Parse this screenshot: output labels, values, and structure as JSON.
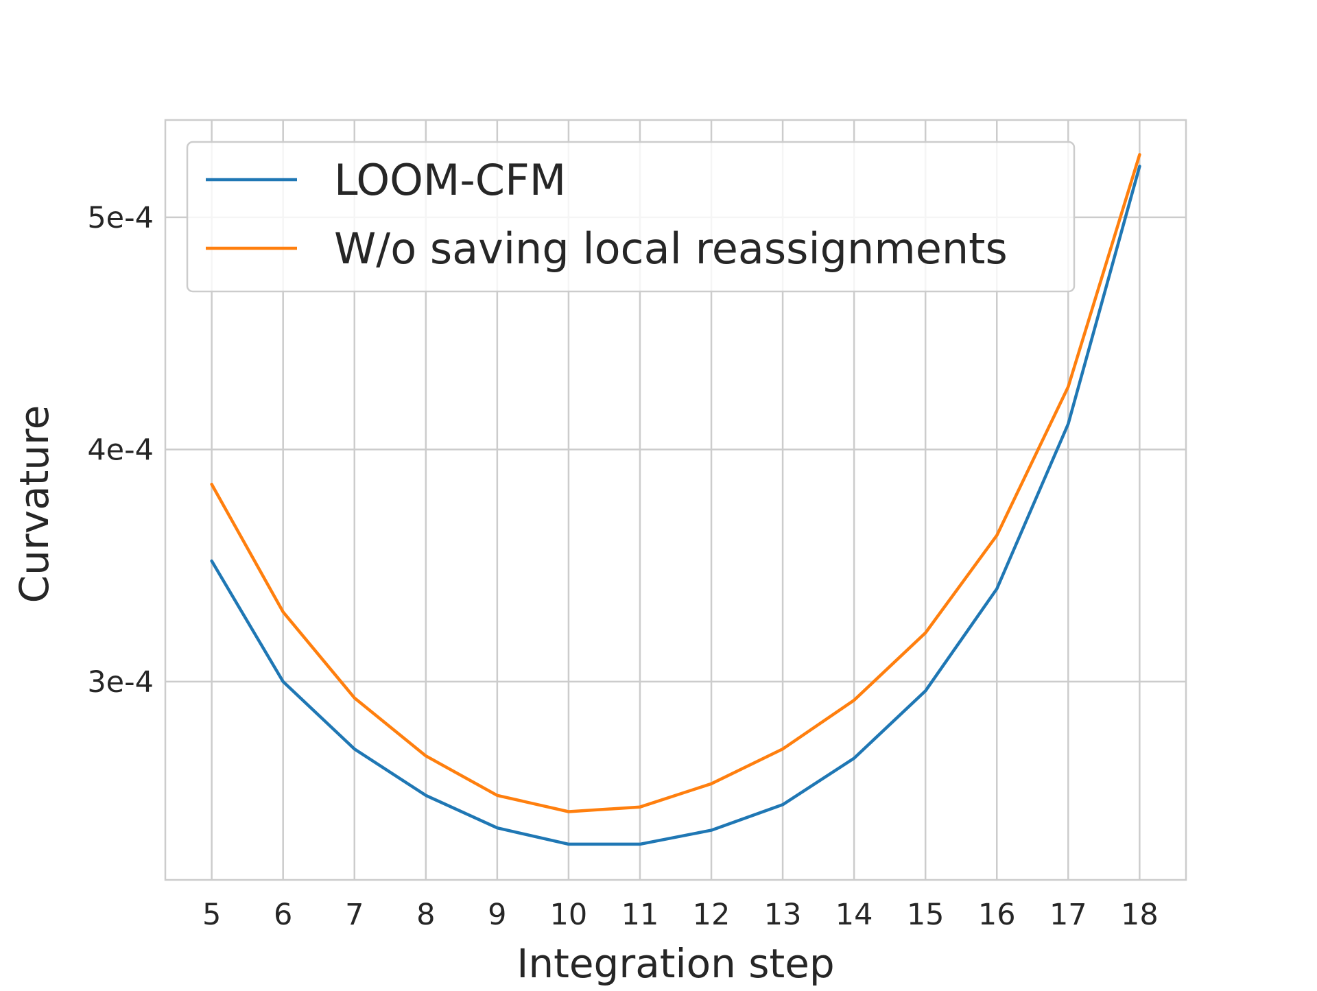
{
  "chart_data": {
    "type": "line",
    "title": "",
    "xlabel": "Integration step",
    "ylabel": "Curvature",
    "x": [
      5,
      6,
      7,
      8,
      9,
      10,
      11,
      12,
      13,
      14,
      15,
      16,
      17,
      18
    ],
    "x_ticks": [
      "5",
      "6",
      "7",
      "8",
      "9",
      "10",
      "11",
      "12",
      "13",
      "14",
      "15",
      "16",
      "17",
      "18"
    ],
    "y_ticks": [
      {
        "value": 0.0003,
        "label": "3e-4"
      },
      {
        "value": 0.0004,
        "label": "4e-4"
      },
      {
        "value": 0.0005,
        "label": "5e-4"
      }
    ],
    "xlim": [
      4.35,
      18.65
    ],
    "ylim": [
      0.0002146,
      0.0005419
    ],
    "grid": true,
    "legend_position": "top",
    "series": [
      {
        "name": "LOOM-CFM",
        "color": "#1f77b4",
        "values": [
          0.000352,
          0.0003,
          0.000271,
          0.000251,
          0.000237,
          0.00023,
          0.00023,
          0.000236,
          0.000247,
          0.000267,
          0.000296,
          0.00034,
          0.000411,
          0.000522
        ]
      },
      {
        "name": "W/o saving local reassignments",
        "color": "#ff7f0e",
        "values": [
          0.000385,
          0.00033,
          0.000293,
          0.000268,
          0.000251,
          0.000244,
          0.000246,
          0.000256,
          0.000271,
          0.000292,
          0.000321,
          0.000363,
          0.000427,
          0.000527
        ]
      }
    ]
  }
}
